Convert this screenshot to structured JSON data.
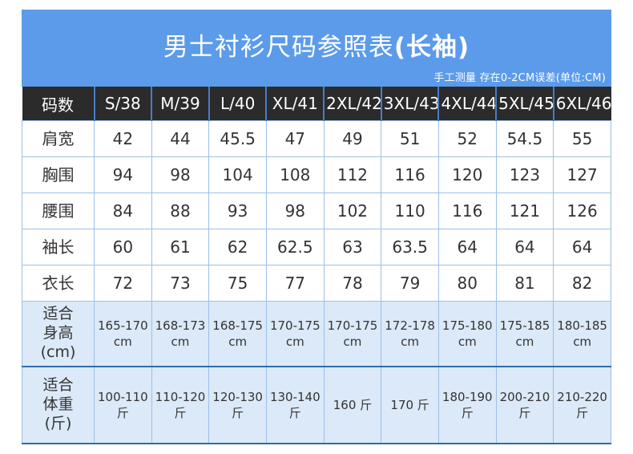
{
  "header": {
    "title_main": "男士衬衫尺码参照表",
    "title_suffix": "(长袖)",
    "note": "手工测量 存在0-2CM误差(单位:CM)",
    "banner_color": "#5b9bea",
    "header_row_color": "#2b2b2b",
    "highlight_row_color": "#dce9f8"
  },
  "table": {
    "columns": [
      "码数",
      "S/38",
      "M/39",
      "L/40",
      "XL/41",
      "2XL/42",
      "3XL/43",
      "4XL/44",
      "5XL/45",
      "6XL/46"
    ],
    "rows": [
      {
        "label": "肩宽",
        "highlight": false,
        "values": [
          "42",
          "44",
          "45.5",
          "47",
          "49",
          "51",
          "52",
          "54.5",
          "55"
        ]
      },
      {
        "label": "胸围",
        "highlight": false,
        "values": [
          "94",
          "98",
          "104",
          "108",
          "112",
          "116",
          "120",
          "123",
          "127"
        ]
      },
      {
        "label": "腰围",
        "highlight": false,
        "values": [
          "84",
          "88",
          "93",
          "98",
          "102",
          "110",
          "116",
          "121",
          "126"
        ]
      },
      {
        "label": "袖长",
        "highlight": false,
        "values": [
          "60",
          "61",
          "62",
          "62.5",
          "63",
          "63.5",
          "64",
          "64",
          "64"
        ]
      },
      {
        "label": "衣长",
        "highlight": false,
        "values": [
          "72",
          "73",
          "75",
          "77",
          "78",
          "79",
          "80",
          "81",
          "82"
        ]
      },
      {
        "label": "适合\n身高\n(cm)",
        "highlight": true,
        "values": [
          "165-170 cm",
          "168-173 cm",
          "168-175 cm",
          "170-175 cm",
          "170-175 cm",
          "172-178 cm",
          "175-180 cm",
          "175-185 cm",
          "180-185 cm"
        ]
      },
      {
        "label": "适合\n体重\n(斤)",
        "highlight": true,
        "values": [
          "100-110 斤",
          "110-120 斤",
          "120-130 斤",
          "130-140 斤",
          "160 斤",
          "170 斤",
          "180-190 斤",
          "200-210 斤",
          "210-220 斤"
        ]
      }
    ]
  }
}
